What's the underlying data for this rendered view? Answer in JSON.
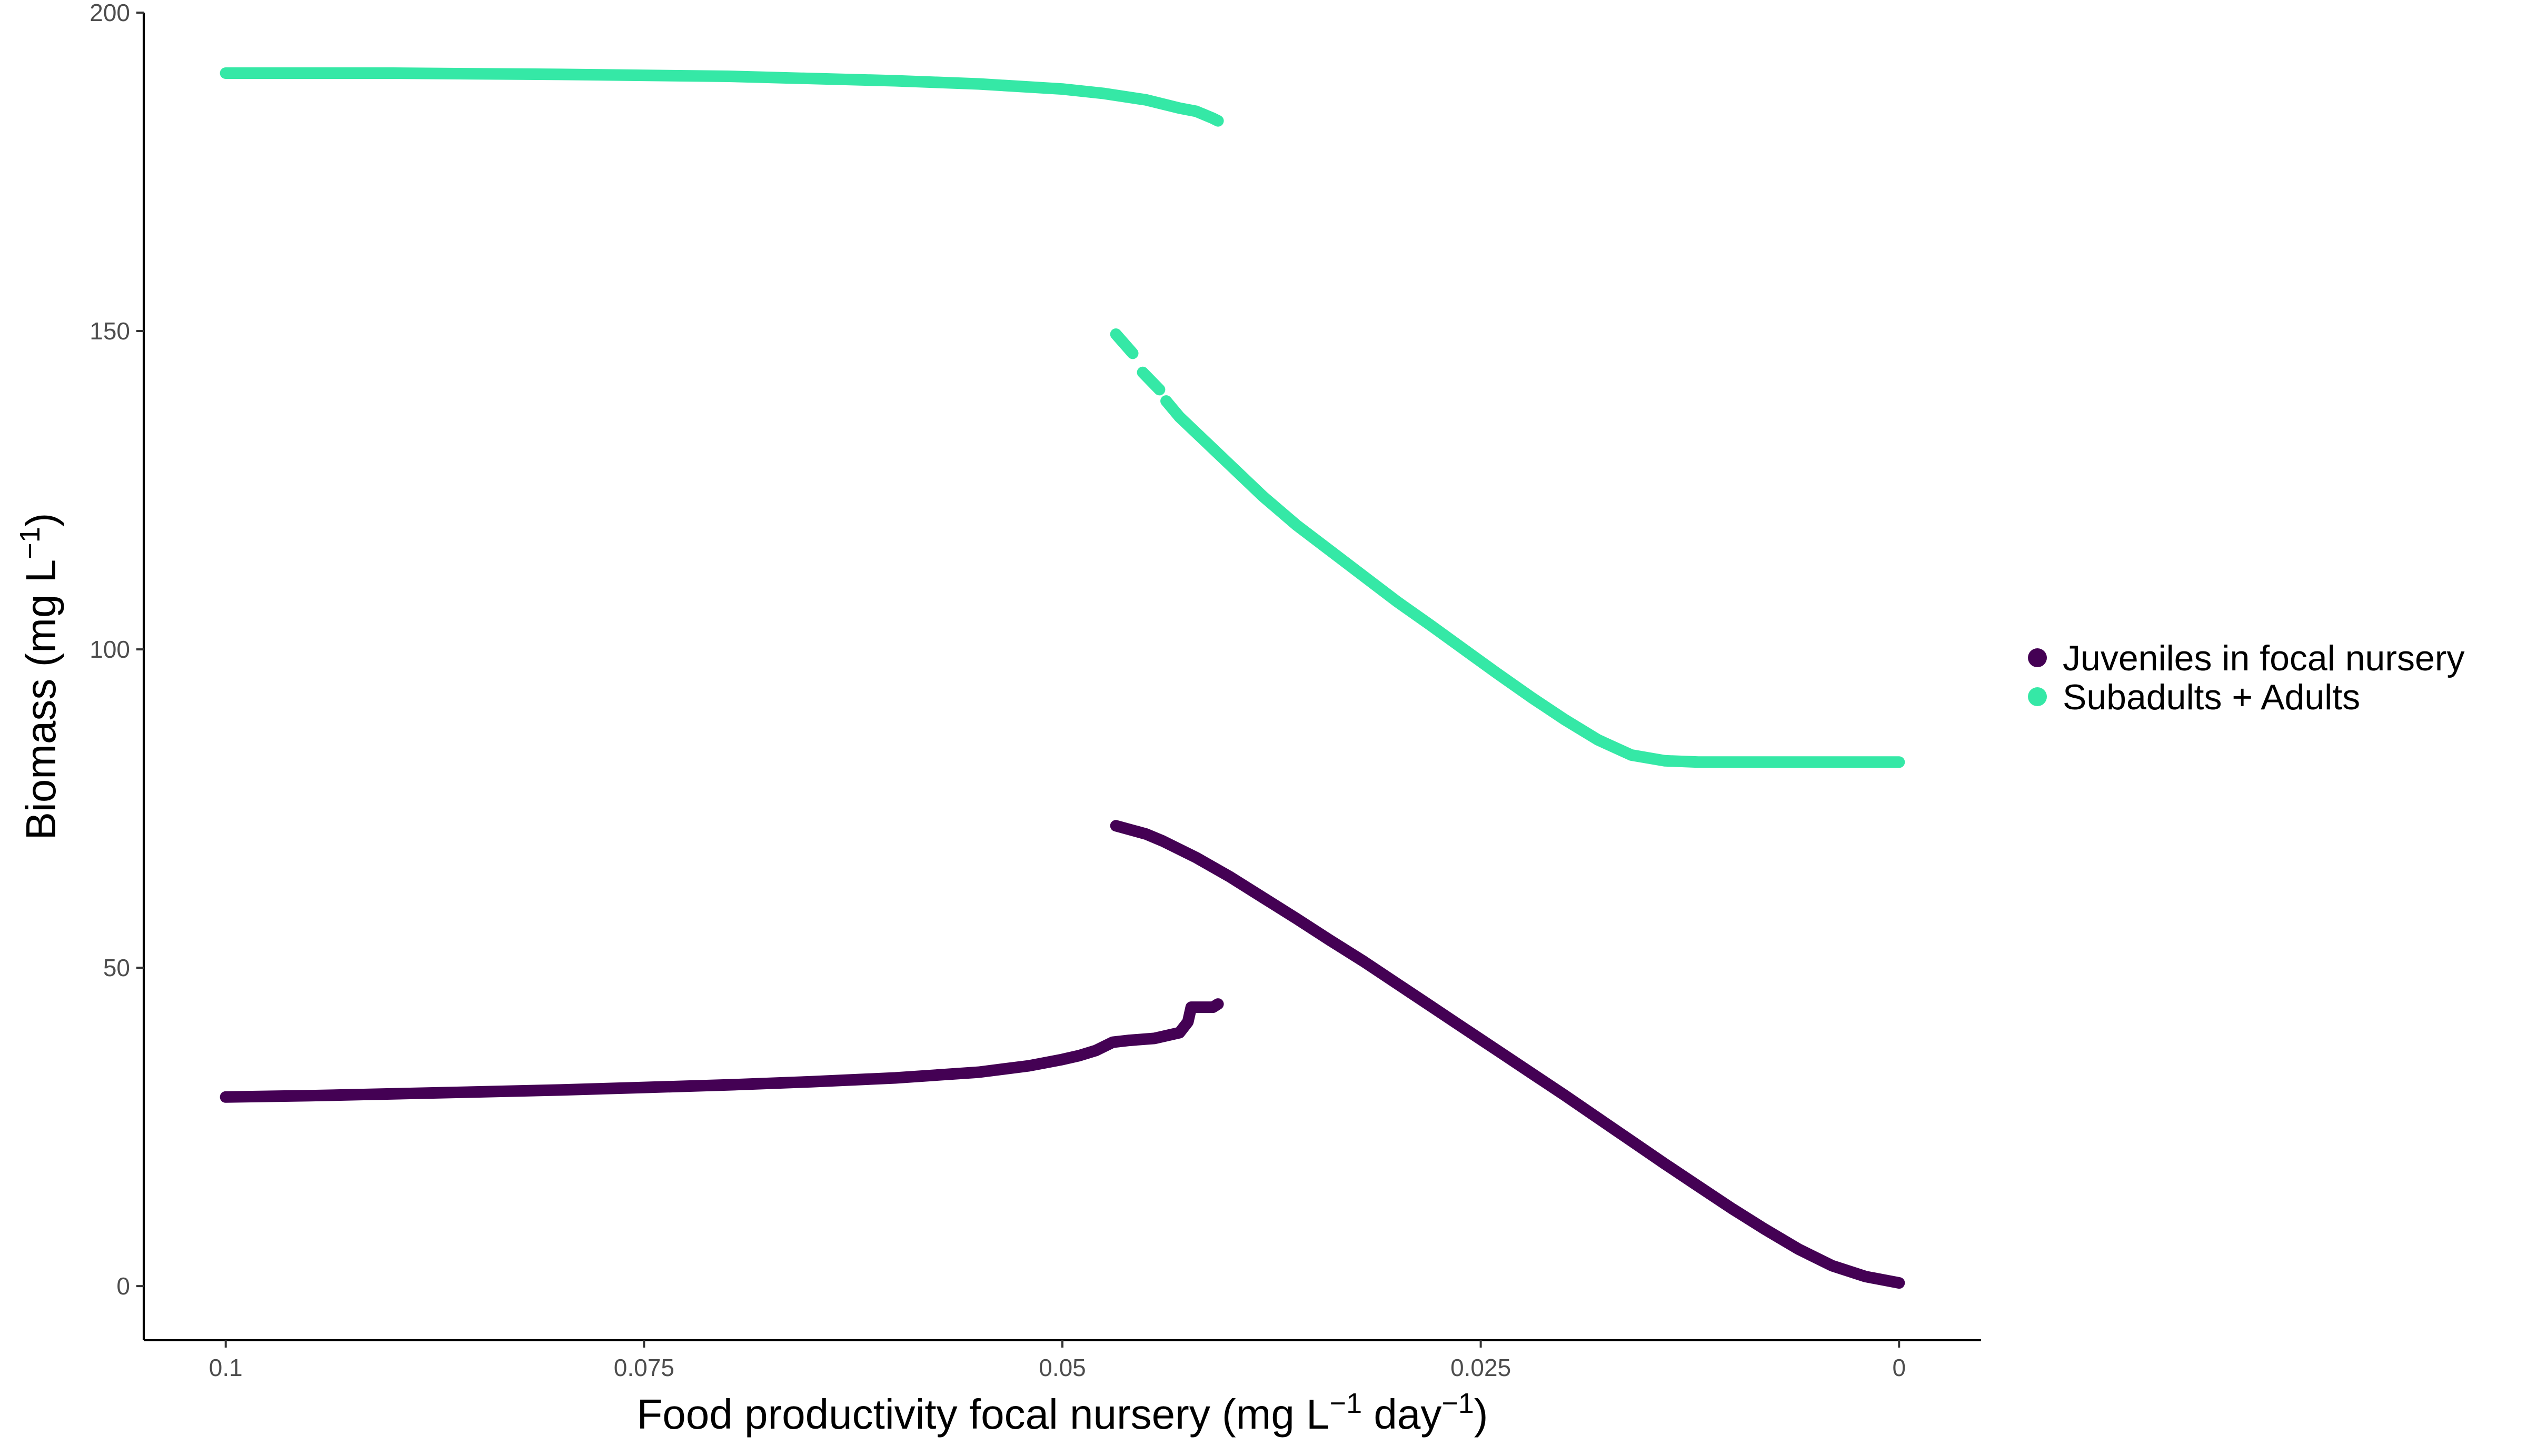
{
  "chart_data": {
    "type": "scatter",
    "title": "",
    "xlabel_parts": [
      "Food productivity focal nursery (mg L",
      "−1",
      " day",
      "−1",
      ")"
    ],
    "ylabel_parts": [
      "Biomass (mg L",
      "−1",
      ")"
    ],
    "x_reversed": true,
    "xlim": [
      0.1049,
      -0.0049
    ],
    "ylim": [
      -8.5,
      200
    ],
    "x_ticks": [
      0.1,
      0.075,
      0.05,
      0.025,
      0
    ],
    "x_tick_labels": [
      "0.1",
      "0.075",
      "0.05",
      "0.025",
      "0"
    ],
    "y_ticks": [
      0,
      50,
      100,
      150,
      200
    ],
    "y_tick_labels": [
      "0",
      "50",
      "100",
      "150",
      "200"
    ],
    "grid": false,
    "legend_position": "right",
    "series": [
      {
        "name": "Juveniles in focal nursery",
        "color": "#440154",
        "segments": [
          [
            [
              0.1,
              29.7
            ],
            [
              0.095,
              29.9
            ],
            [
              0.09,
              30.2
            ],
            [
              0.085,
              30.5
            ],
            [
              0.08,
              30.8
            ],
            [
              0.075,
              31.2
            ],
            [
              0.07,
              31.6
            ],
            [
              0.065,
              32.1
            ],
            [
              0.06,
              32.7
            ],
            [
              0.055,
              33.6
            ],
            [
              0.052,
              34.6
            ],
            [
              0.05,
              35.6
            ],
            [
              0.049,
              36.2
            ],
            [
              0.048,
              37.0
            ],
            [
              0.047,
              38.3
            ],
            [
              0.046,
              38.6
            ],
            [
              0.0445,
              38.9
            ],
            [
              0.043,
              39.8
            ],
            [
              0.0425,
              41.5
            ],
            [
              0.0423,
              43.8
            ],
            [
              0.041,
              43.8
            ],
            [
              0.0407,
              44.3
            ]
          ],
          [
            [
              0.0468,
              72.3
            ],
            [
              0.045,
              71.0
            ],
            [
              0.044,
              69.9
            ],
            [
              0.042,
              67.3
            ],
            [
              0.04,
              64.3
            ],
            [
              0.038,
              61.0
            ],
            [
              0.036,
              57.7
            ],
            [
              0.034,
              54.3
            ],
            [
              0.032,
              51.0
            ],
            [
              0.03,
              47.5
            ],
            [
              0.028,
              44.0
            ],
            [
              0.026,
              40.5
            ],
            [
              0.024,
              37.0
            ],
            [
              0.022,
              33.5
            ],
            [
              0.02,
              30.0
            ],
            [
              0.018,
              26.4
            ],
            [
              0.016,
              22.8
            ],
            [
              0.014,
              19.2
            ],
            [
              0.012,
              15.7
            ],
            [
              0.01,
              12.2
            ],
            [
              0.008,
              8.9
            ],
            [
              0.006,
              5.8
            ],
            [
              0.004,
              3.2
            ],
            [
              0.002,
              1.5
            ],
            [
              0.0,
              0.5
            ]
          ]
        ]
      },
      {
        "name": "Subadults + Adults",
        "color": "#35e8a6",
        "segments": [
          [
            [
              0.1,
              190.5
            ],
            [
              0.09,
              190.5
            ],
            [
              0.08,
              190.3
            ],
            [
              0.07,
              190.0
            ],
            [
              0.06,
              189.3
            ],
            [
              0.055,
              188.8
            ],
            [
              0.05,
              188.0
            ],
            [
              0.0475,
              187.3
            ],
            [
              0.045,
              186.3
            ],
            [
              0.043,
              185.0
            ],
            [
              0.042,
              184.5
            ],
            [
              0.041,
              183.4
            ],
            [
              0.0407,
              183.0
            ]
          ],
          [
            [
              0.0468,
              149.5
            ],
            [
              0.0458,
              146.5
            ]
          ],
          [
            [
              0.0452,
              143.5
            ],
            [
              0.0442,
              140.8
            ]
          ],
          [
            [
              0.0438,
              139.0
            ],
            [
              0.043,
              136.5
            ],
            [
              0.042,
              134.0
            ],
            [
              0.041,
              131.5
            ],
            [
              0.04,
              129.0
            ],
            [
              0.038,
              124.0
            ],
            [
              0.036,
              119.5
            ],
            [
              0.034,
              115.5
            ],
            [
              0.032,
              111.5
            ],
            [
              0.03,
              107.5
            ],
            [
              0.028,
              103.8
            ],
            [
              0.026,
              100.0
            ],
            [
              0.024,
              96.2
            ],
            [
              0.022,
              92.5
            ],
            [
              0.02,
              89.0
            ],
            [
              0.018,
              85.8
            ],
            [
              0.016,
              83.4
            ],
            [
              0.014,
              82.5
            ],
            [
              0.012,
              82.3
            ],
            [
              0.01,
              82.3
            ],
            [
              0.005,
              82.3
            ],
            [
              0.0,
              82.3
            ]
          ]
        ]
      }
    ]
  }
}
